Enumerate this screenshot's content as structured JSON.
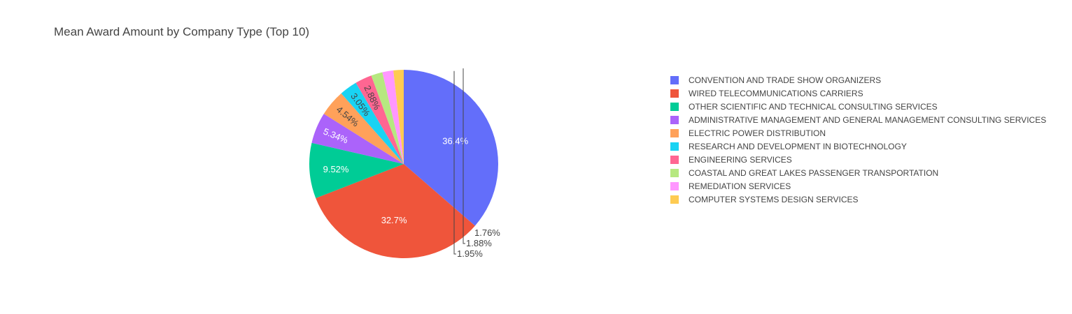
{
  "chart_data": {
    "type": "pie",
    "title": "Mean Award Amount by Company Type (Top 10)",
    "slices": [
      {
        "label": "CONVENTION AND TRADE SHOW ORGANIZERS",
        "percent": 36.4,
        "text": "36.4%",
        "color": "#636efa"
      },
      {
        "label": "WIRED TELECOMMUNICATIONS CARRIERS",
        "percent": 32.7,
        "text": "32.7%",
        "color": "#EF553B"
      },
      {
        "label": "OTHER SCIENTIFIC AND TECHNICAL CONSULTING SERVICES",
        "percent": 9.52,
        "text": "9.52%",
        "color": "#00cc96"
      },
      {
        "label": "ADMINISTRATIVE MANAGEMENT AND GENERAL MANAGEMENT CONSULTING SERVICES",
        "percent": 5.34,
        "text": "5.34%",
        "color": "#ab63fa"
      },
      {
        "label": "ELECTRIC POWER DISTRIBUTION",
        "percent": 4.54,
        "text": "4.54%",
        "color": "#FFA15A"
      },
      {
        "label": "RESEARCH AND DEVELOPMENT IN BIOTECHNOLOGY",
        "percent": 3.05,
        "text": "3.05%",
        "color": "#19d3f3"
      },
      {
        "label": "ENGINEERING SERVICES",
        "percent": 2.88,
        "text": "2.88%",
        "color": "#FF6692"
      },
      {
        "label": "COASTAL AND GREAT LAKES PASSENGER TRANSPORTATION",
        "percent": 1.95,
        "text": "1.95%",
        "color": "#B6E880"
      },
      {
        "label": "REMEDIATION SERVICES",
        "percent": 1.88,
        "text": "1.88%",
        "color": "#FF97FF"
      },
      {
        "label": "COMPUTER SYSTEMS DESIGN SERVICES",
        "percent": 1.76,
        "text": "1.76%",
        "color": "#FECB52"
      }
    ],
    "legend_position": "right"
  }
}
